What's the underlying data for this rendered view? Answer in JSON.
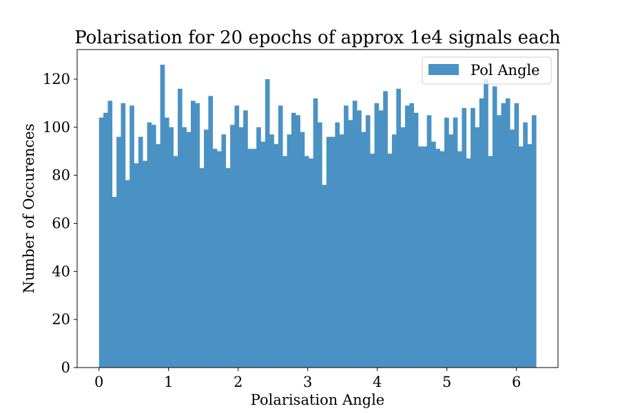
{
  "chart_data": {
    "type": "bar",
    "title": "Polarisation for 20 epochs of approx 1e4 signals each",
    "xlabel": "Polarisation Angle",
    "ylabel": "Number of Occurences",
    "xlim": [
      -0.3142,
      6.5973
    ],
    "ylim": [
      0,
      132.3
    ],
    "xticks": [
      0,
      1,
      2,
      3,
      4,
      5,
      6
    ],
    "yticks": [
      0,
      20,
      40,
      60,
      80,
      100,
      120
    ],
    "bin_range": [
      0,
      6.2832
    ],
    "bar_color": "#4b92c4",
    "grid": false,
    "legend_position": "top-right",
    "series": [
      {
        "name": "Pol Angle",
        "values": [
          104,
          106,
          111,
          71,
          96,
          110,
          78,
          109,
          85,
          96,
          86,
          102,
          101,
          93,
          126,
          104,
          100,
          88,
          116,
          100,
          98,
          111,
          110,
          83,
          99,
          113,
          91,
          90,
          97,
          83,
          101,
          109,
          100,
          107,
          91,
          91,
          100,
          94,
          120,
          97,
          93,
          109,
          88,
          97,
          106,
          105,
          98,
          88,
          87,
          112,
          102,
          76,
          96,
          96,
          102,
          97,
          109,
          103,
          111,
          107,
          98,
          105,
          89,
          110,
          107,
          115,
          89,
          97,
          116,
          100,
          109,
          110,
          106,
          92,
          92,
          105,
          94,
          91,
          90,
          104,
          97,
          104,
          90,
          108,
          87,
          108,
          100,
          112,
          120,
          88,
          117,
          105,
          110,
          112,
          99,
          110,
          92,
          102,
          93,
          105
        ]
      }
    ]
  }
}
